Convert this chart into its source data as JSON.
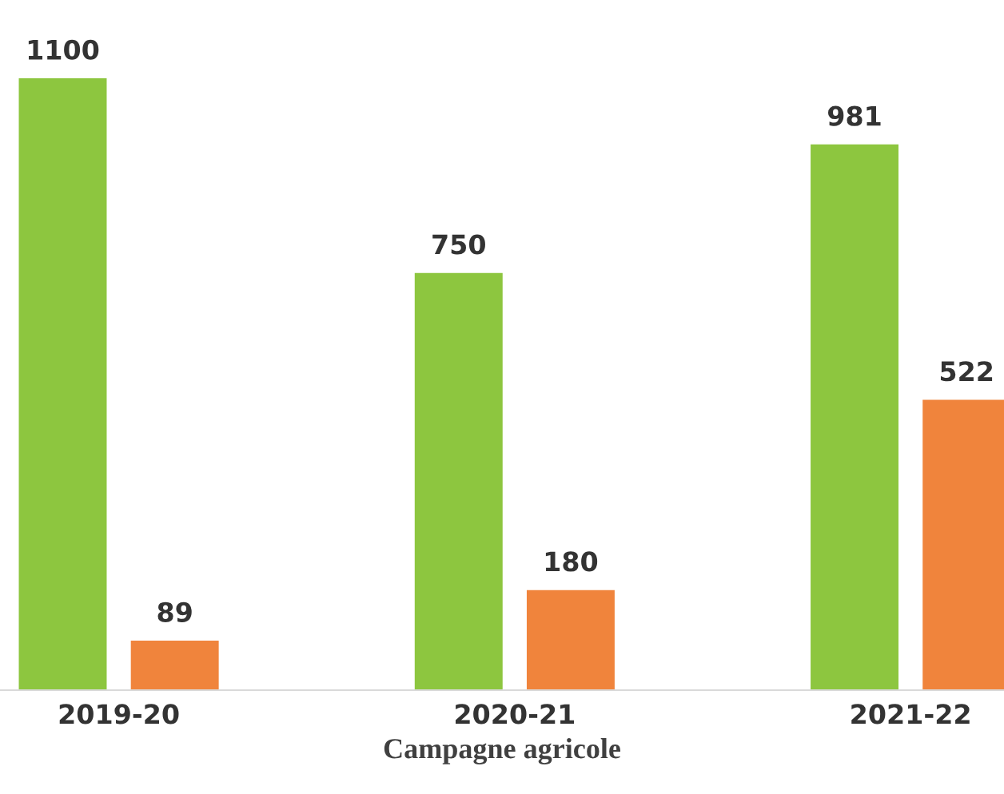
{
  "chart_data": {
    "type": "bar",
    "xlabel": "Campagne agricole",
    "categories": [
      "2019-20",
      "2020-21",
      "2021-22"
    ],
    "series": [
      {
        "color": "#8dc63f",
        "values": [
          1100,
          750,
          981
        ]
      },
      {
        "color": "#f0843c",
        "values": [
          89,
          180,
          522
        ]
      }
    ],
    "data_labels": true,
    "grid": false,
    "legend": false
  }
}
